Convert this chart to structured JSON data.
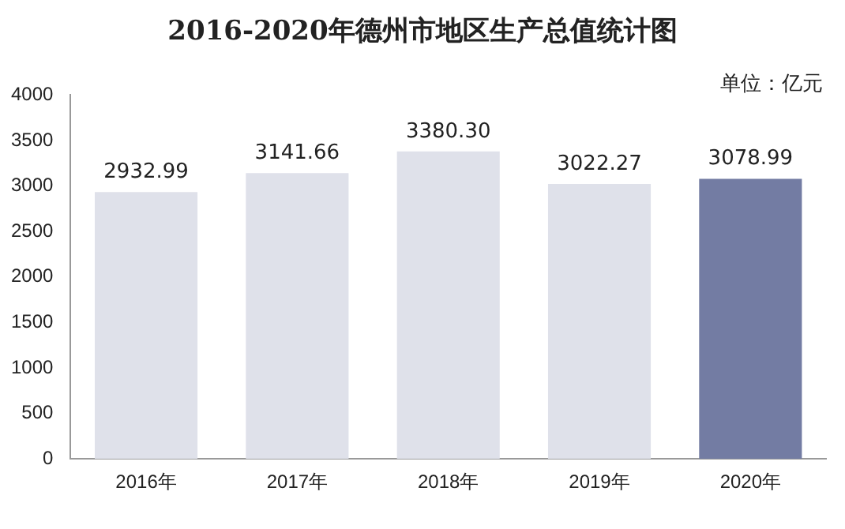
{
  "chart_data": {
    "type": "bar",
    "title": "2016-2020年德州市地区生产总值统计图",
    "annotations": [
      "单位：亿元"
    ],
    "categories": [
      "2016年",
      "2017年",
      "2018年",
      "2019年",
      "2020年"
    ],
    "values": [
      2932.99,
      3141.66,
      3380.3,
      3022.27,
      3078.99
    ],
    "value_labels": [
      "2932.99",
      "3141.66",
      "3380.30",
      "3022.27",
      "3078.99"
    ],
    "colors": [
      "#dfe1ea",
      "#dfe1ea",
      "#dfe1ea",
      "#dfe1ea",
      "#737ca3"
    ],
    "ylim": [
      0,
      4000
    ],
    "yticks": [
      0,
      500,
      1000,
      1500,
      2000,
      2500,
      3000,
      3500,
      4000
    ],
    "grid": false,
    "legend": false
  }
}
